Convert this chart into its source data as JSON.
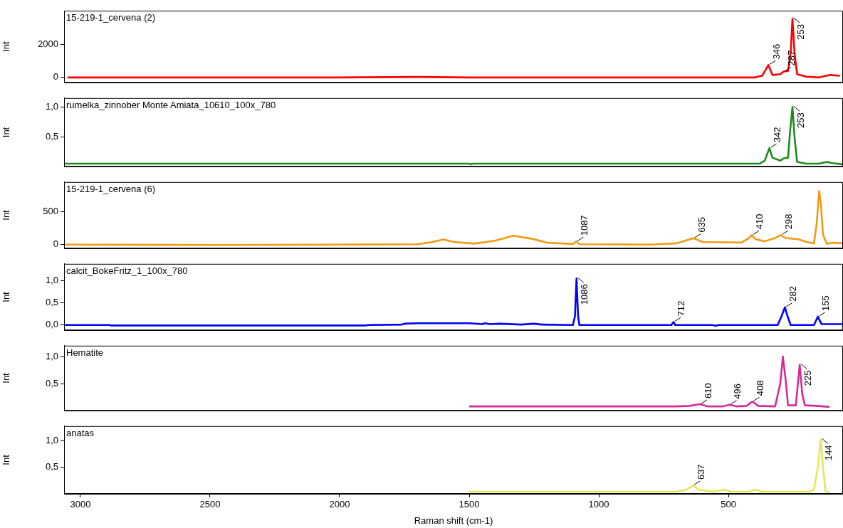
{
  "chart_data": [
    {
      "type": "line",
      "title": "15-219-1_cervena (2)",
      "ylabel": "Int",
      "xlim": [
        3063,
        58
      ],
      "xticks": [
        3000,
        2500,
        2000,
        1500,
        1000,
        500
      ],
      "ylim": [
        -320,
        4080
      ],
      "yticks": [
        0,
        2000
      ],
      "tick_labels": "y",
      "legend": false,
      "grid": false,
      "series": [
        {
          "color": "#ff0000",
          "x": [
            3050,
            2000,
            1700,
            1500,
            400,
            370,
            346,
            330,
            300,
            287,
            270,
            260,
            253,
            245,
            235,
            200,
            150,
            110,
            70
          ],
          "values": [
            0,
            0,
            30,
            0,
            0,
            100,
            760,
            150,
            200,
            360,
            400,
            1500,
            3600,
            1500,
            200,
            50,
            0,
            150,
            100
          ]
        }
      ],
      "annotations": [
        {
          "text": "346",
          "x": 346,
          "y": 760
        },
        {
          "text": "287",
          "x": 287,
          "y": 360
        },
        {
          "text": "253",
          "x": 253,
          "y": 3600
        }
      ]
    },
    {
      "type": "line",
      "title": "rumelka_zinnober Monte Amiata_10610_100x_780",
      "ylabel": "Int",
      "xlim": [
        3063,
        58
      ],
      "xticks": [
        3000,
        2500,
        2000,
        1500,
        1000,
        500
      ],
      "ylim": [
        0,
        1.15
      ],
      "yticks": [
        {
          "value": 0.5,
          "label": "0,5"
        },
        {
          "value": 1,
          "label": "1,0"
        }
      ],
      "tick_labels": "y",
      "legend": false,
      "grid": false,
      "series": [
        {
          "color": "#1f8a1f",
          "x": [
            3060,
            1500,
            1492,
            1485,
            380,
            360,
            342,
            330,
            300,
            287,
            270,
            262,
            253,
            245,
            235,
            200,
            150,
            120,
            100,
            60
          ],
          "values": [
            0.05,
            0.05,
            0.04,
            0.05,
            0.05,
            0.1,
            0.31,
            0.15,
            0.1,
            0.14,
            0.15,
            0.6,
            1.0,
            0.5,
            0.08,
            0.05,
            0.05,
            0.08,
            0.06,
            0.04
          ]
        }
      ],
      "annotations": [
        {
          "text": "342",
          "x": 342,
          "y": 0.31
        },
        {
          "text": "253",
          "x": 253,
          "y": 1.0
        }
      ]
    },
    {
      "type": "line",
      "title": "15-219-1_cervena (6)",
      "ylabel": "Int",
      "xlim": [
        3063,
        58
      ],
      "xticks": [
        3000,
        2500,
        2000,
        1500,
        1000,
        500
      ],
      "ylim": [
        -58,
        942
      ],
      "yticks": [
        0,
        500
      ],
      "tick_labels": "y",
      "legend": false,
      "grid": false,
      "series": [
        {
          "color": "#f29a12",
          "x": [
            3060,
            2500,
            2000,
            1700,
            1640,
            1600,
            1560,
            1480,
            1400,
            1330,
            1260,
            1200,
            1100,
            1087,
            1075,
            800,
            700,
            635,
            600,
            500,
            450,
            420,
            410,
            395,
            360,
            320,
            298,
            280,
            230,
            200,
            170,
            160,
            150,
            143,
            135,
            120,
            100,
            60
          ],
          "values": [
            0,
            -5,
            0,
            5,
            40,
            77,
            40,
            15,
            60,
            135,
            90,
            30,
            10,
            48,
            5,
            0,
            20,
            96,
            40,
            35,
            30,
            100,
            144,
            80,
            50,
            100,
            144,
            100,
            80,
            40,
            20,
            300,
            808,
            600,
            150,
            10,
            30,
            20
          ]
        }
      ],
      "annotations": [
        {
          "text": "1087",
          "x": 1087,
          "y": 48
        },
        {
          "text": "635",
          "x": 635,
          "y": 96
        },
        {
          "text": "410",
          "x": 410,
          "y": 144
        },
        {
          "text": "298",
          "x": 298,
          "y": 144
        }
      ]
    },
    {
      "type": "line",
      "title": "calcit_BokeFritz_1_100x_780",
      "ylabel": "Int",
      "xlim": [
        3063,
        58
      ],
      "xticks": [
        3000,
        2500,
        2000,
        1500,
        1000,
        500
      ],
      "ylim": [
        -0.12,
        1.38
      ],
      "yticks": [
        {
          "value": 0,
          "label": "0,0"
        },
        {
          "value": 0.5,
          "label": "0,5"
        },
        {
          "value": 1,
          "label": "1,0"
        }
      ],
      "tick_labels": "y",
      "legend": false,
      "grid": false,
      "series": [
        {
          "color": "#0000ff",
          "x": [
            3060,
            2890,
            2880,
            1900,
            1890,
            1760,
            1750,
            1700,
            1500,
            1450,
            1440,
            1420,
            1380,
            1300,
            1250,
            1220,
            1100,
            1092,
            1086,
            1080,
            1075,
            720,
            712,
            705,
            560,
            550,
            540,
            310,
            295,
            282,
            272,
            260,
            170,
            162,
            155,
            148,
            140,
            60
          ],
          "values": [
            0,
            0,
            -0.01,
            -0.01,
            0,
            0.01,
            0.03,
            0.04,
            0.04,
            0.02,
            0.04,
            0.02,
            0.03,
            0.01,
            0.03,
            0.01,
            0,
            0.2,
            1.05,
            0.2,
            0,
            0,
            0.07,
            0,
            0,
            -0.02,
            0,
            0,
            0.2,
            0.4,
            0.2,
            0,
            0,
            0.1,
            0.19,
            0.1,
            0.02,
            0.02
          ]
        }
      ],
      "annotations": [
        {
          "text": "1086",
          "x": 1086,
          "y": 1.05
        },
        {
          "text": "712",
          "x": 712,
          "y": 0.07
        },
        {
          "text": "282",
          "x": 282,
          "y": 0.4
        },
        {
          "text": "155",
          "x": 155,
          "y": 0.19
        }
      ]
    },
    {
      "type": "line",
      "title": "Hematite",
      "ylabel": "Int",
      "xlim": [
        3063,
        58
      ],
      "xticks": [
        3000,
        2500,
        2000,
        1500,
        1000,
        500
      ],
      "ylim": [
        0,
        1.2
      ],
      "yticks": [
        {
          "value": 0.5,
          "label": "0,5"
        },
        {
          "value": 1,
          "label": "1,0"
        }
      ],
      "tick_labels": "y",
      "legend": false,
      "grid": false,
      "series": [
        {
          "color": "#d62a98",
          "x": [
            1500,
            700,
            650,
            610,
            580,
            520,
            496,
            470,
            430,
            408,
            385,
            320,
            300,
            290,
            280,
            270,
            240,
            232,
            225,
            215,
            205,
            160,
            110
          ],
          "values": [
            0.08,
            0.08,
            0.09,
            0.12,
            0.08,
            0.08,
            0.11,
            0.08,
            0.09,
            0.17,
            0.09,
            0.08,
            0.5,
            1.0,
            0.6,
            0.1,
            0.1,
            0.5,
            0.85,
            0.3,
            0.1,
            0.09,
            0.07
          ]
        }
      ],
      "annotations": [
        {
          "text": "610",
          "x": 610,
          "y": 0.12
        },
        {
          "text": "496",
          "x": 496,
          "y": 0.11
        },
        {
          "text": "408",
          "x": 408,
          "y": 0.17
        },
        {
          "text": "225",
          "x": 225,
          "y": 0.85
        }
      ]
    },
    {
      "type": "line",
      "title": "anatas",
      "ylabel": "Int",
      "xlabel": "Raman shift (cm-1)",
      "xlim": [
        3063,
        58
      ],
      "xticks": [
        3000,
        2500,
        2000,
        1500,
        1000,
        500
      ],
      "ylim": [
        0,
        1.28
      ],
      "yticks": [
        {
          "value": 0.5,
          "label": "0,5"
        },
        {
          "value": 1,
          "label": "1,0"
        }
      ],
      "legend": false,
      "grid": false,
      "series": [
        {
          "color": "#e6e65c",
          "x": [
            1500,
            700,
            660,
            637,
            615,
            560,
            515,
            490,
            420,
            395,
            370,
            190,
            170,
            155,
            144,
            135,
            125,
            110
          ],
          "values": [
            0.04,
            0.04,
            0.08,
            0.16,
            0.08,
            0.04,
            0.08,
            0.04,
            0.04,
            0.08,
            0.04,
            0.04,
            0.08,
            0.5,
            1.03,
            0.5,
            0.04,
            0.03
          ]
        }
      ],
      "annotations": [
        {
          "text": "637",
          "x": 637,
          "y": 0.16
        },
        {
          "text": "144",
          "x": 144,
          "y": 1.03
        }
      ]
    }
  ]
}
